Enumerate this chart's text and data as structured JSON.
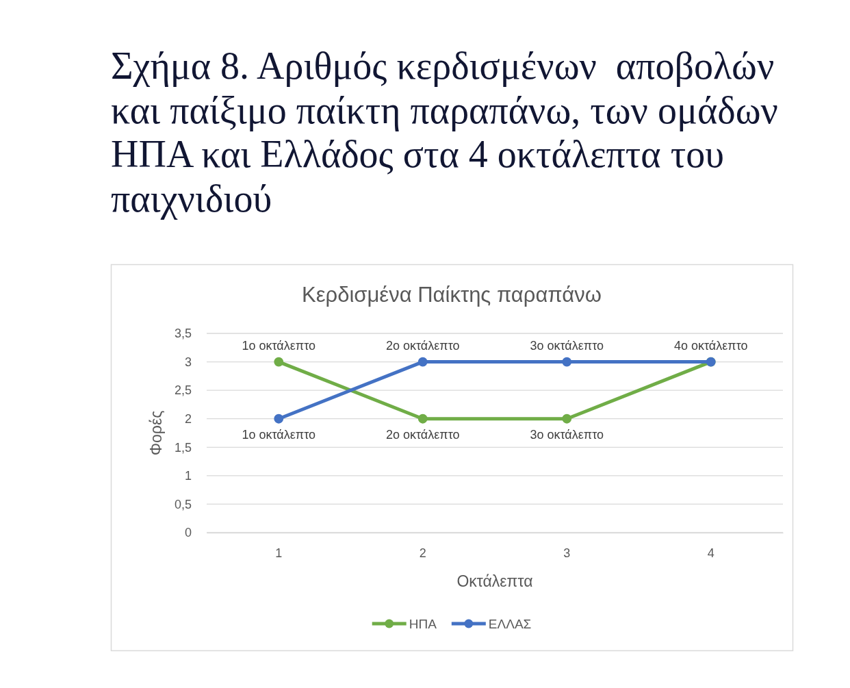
{
  "chart_data": {
    "type": "line",
    "title": "Κερδισμένα Παίκτης παραπάνω",
    "annotations": [
      "Σχήμα 8. Αριθμός κερδισμένων  αποβολών και παίξιμο παίκτη παραπάνω, των ομάδων ΗΠΑ και Ελλάδος στα 4 οκτάλεπτα του παιχνιδιού",
      {
        "text": "1ο οκτάλεπτο",
        "x": "1",
        "y": 3
      },
      {
        "text": "2ο οκτάλεπτο",
        "x": "2",
        "y": 3
      },
      {
        "text": "3ο οκτάλεπτο",
        "x": "3",
        "y": 3
      },
      {
        "text": "4ο οκτάλεπτο",
        "x": "4",
        "y": 3
      },
      {
        "text": "1ο οκτάλεπτο",
        "x": "1",
        "y": 2
      },
      {
        "text": "2ο οκτάλεπτο",
        "x": "2",
        "y": 2
      },
      {
        "text": "3ο οκτάλεπτο",
        "x": "3",
        "y": 2
      }
    ],
    "xlabel": "Οκτάλεπτα",
    "ylabel": "Φορές",
    "categories": [
      "1",
      "2",
      "3",
      "4"
    ],
    "series": [
      {
        "name": "ΗΠΑ",
        "color": "#70ad47",
        "values": [
          3,
          2,
          2,
          3
        ]
      },
      {
        "name": "ΕΛΛΑΣ",
        "color": "#4472c4",
        "values": [
          2,
          3,
          3,
          3
        ]
      }
    ],
    "ylim": [
      0,
      3.5
    ],
    "yticks": [
      0,
      {
        "value": 0.5,
        "label": "0,5"
      },
      1,
      {
        "value": 1.5,
        "label": "1,5"
      },
      2,
      {
        "value": 2.5,
        "label": "2,5"
      },
      3,
      {
        "value": 3.5,
        "label": "3,5"
      }
    ],
    "grid": "y",
    "legend": "bottom",
    "marker": "circle",
    "line_style": "solid"
  }
}
